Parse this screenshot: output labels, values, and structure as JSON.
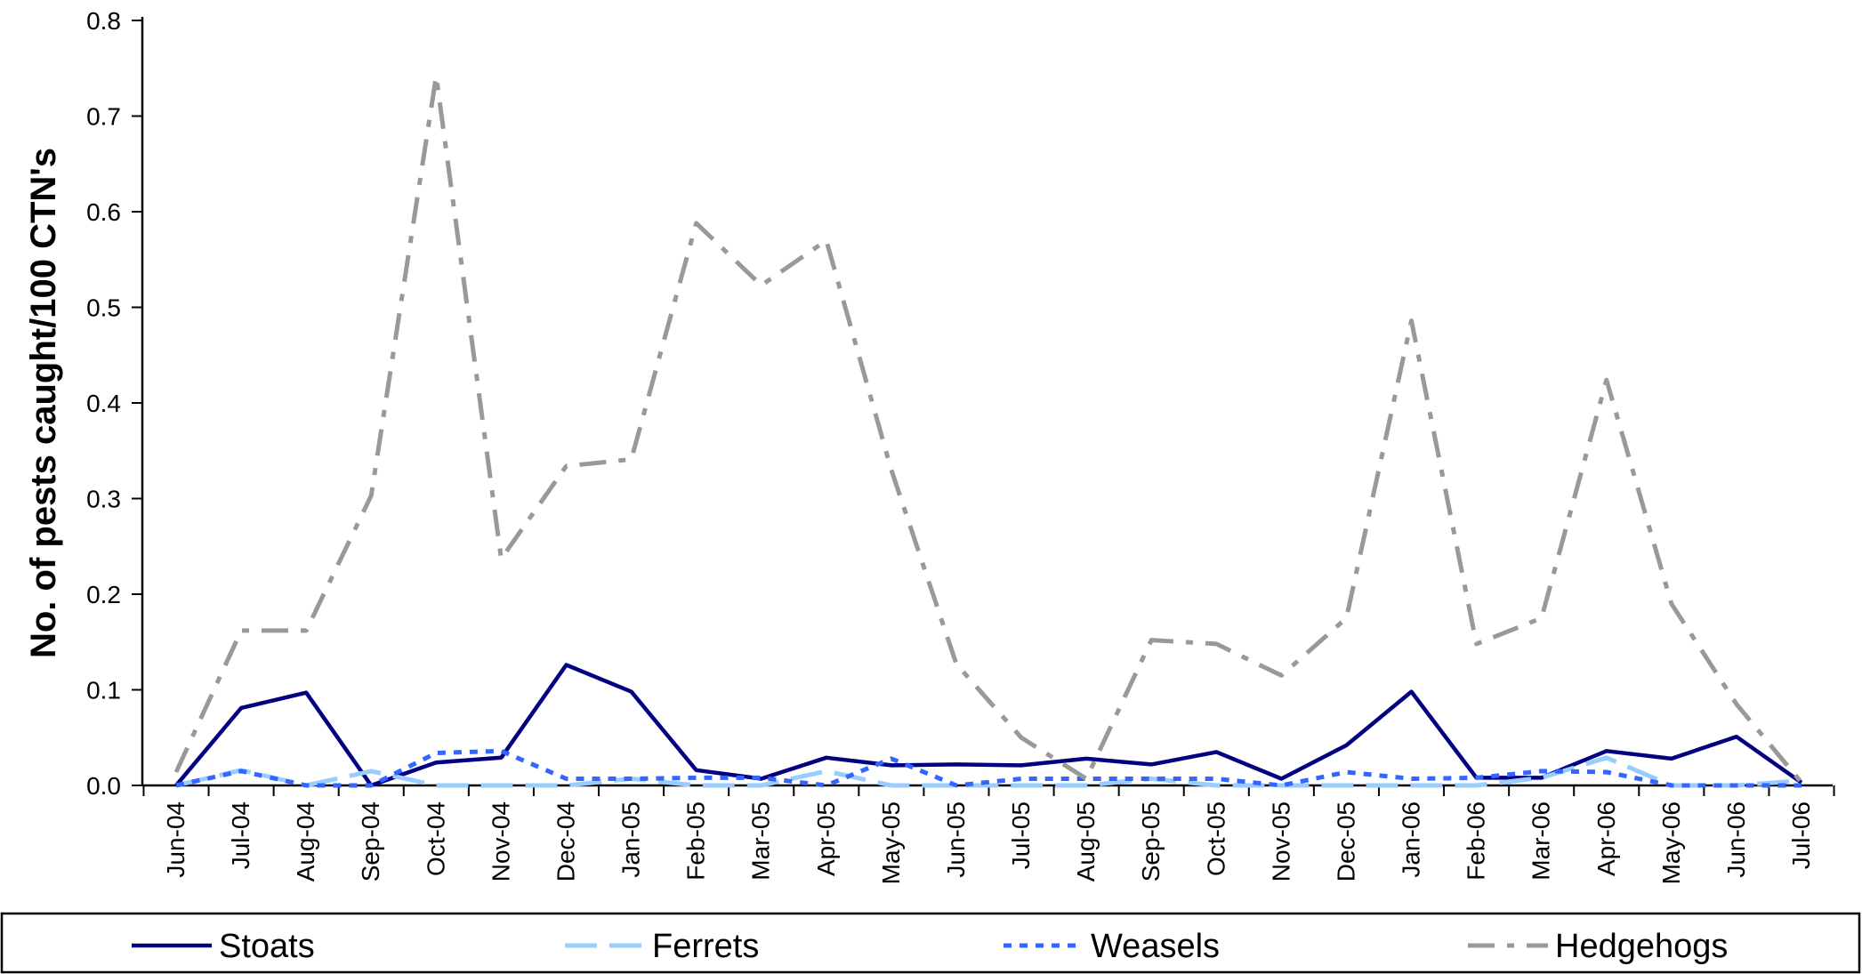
{
  "chart_data": {
    "type": "line",
    "title": "",
    "xlabel": "",
    "ylabel": "No. of pests caught/100 CTN's",
    "ylim": [
      0,
      0.8
    ],
    "yticks": [
      "0.0",
      "0.1",
      "0.2",
      "0.3",
      "0.4",
      "0.5",
      "0.6",
      "0.7",
      "0.8"
    ],
    "grid": false,
    "legend_position": "bottom",
    "categories": [
      "Jun-04",
      "Jul-04",
      "Aug-04",
      "Sep-04",
      "Oct-04",
      "Nov-04",
      "Dec-04",
      "Jan-05",
      "Feb-05",
      "Mar-05",
      "Apr-05",
      "May-05",
      "Jun-05",
      "Jul-05",
      "Aug-05",
      "Sep-05",
      "Oct-05",
      "Nov-05",
      "Dec-05",
      "Jan-06",
      "Feb-06",
      "Mar-06",
      "Apr-06",
      "May-06",
      "Jun-06",
      "Jul-06"
    ],
    "series": [
      {
        "name": "Stoats",
        "color": "#000080",
        "dash": "solid",
        "values": [
          0.0,
          0.081,
          0.097,
          0.0,
          0.024,
          0.029,
          0.126,
          0.098,
          0.016,
          0.007,
          0.029,
          0.021,
          0.022,
          0.021,
          0.028,
          0.022,
          0.035,
          0.007,
          0.042,
          0.098,
          0.008,
          0.008,
          0.036,
          0.028,
          0.051,
          0.003
        ]
      },
      {
        "name": "Ferrets",
        "color": "#99CCFF",
        "dash": "long-dash",
        "values": [
          0.0,
          0.016,
          0.0,
          0.015,
          0.0,
          0.0,
          0.0,
          0.007,
          0.0,
          0.0,
          0.015,
          0.0,
          0.0,
          0.0,
          0.0,
          0.007,
          0.0,
          0.0,
          0.0,
          0.0,
          0.0,
          0.008,
          0.029,
          0.0,
          0.0,
          0.005
        ]
      },
      {
        "name": "Weasels",
        "color": "#3366FF",
        "dash": "dotted",
        "values": [
          0.0,
          0.015,
          0.0,
          0.0,
          0.034,
          0.036,
          0.007,
          0.007,
          0.008,
          0.008,
          0.0,
          0.028,
          0.0,
          0.007,
          0.007,
          0.007,
          0.007,
          0.0,
          0.014,
          0.007,
          0.008,
          0.015,
          0.014,
          0.0,
          0.0,
          0.0
        ]
      },
      {
        "name": "Hedgehogs",
        "color": "#999999",
        "dash": "dash-dot",
        "values": [
          0.014,
          0.162,
          0.162,
          0.303,
          0.742,
          0.237,
          0.334,
          0.341,
          0.588,
          0.523,
          0.57,
          0.33,
          0.127,
          0.05,
          0.007,
          0.152,
          0.148,
          0.115,
          0.175,
          0.486,
          0.148,
          0.175,
          0.424,
          0.19,
          0.085,
          0.003
        ]
      }
    ]
  }
}
